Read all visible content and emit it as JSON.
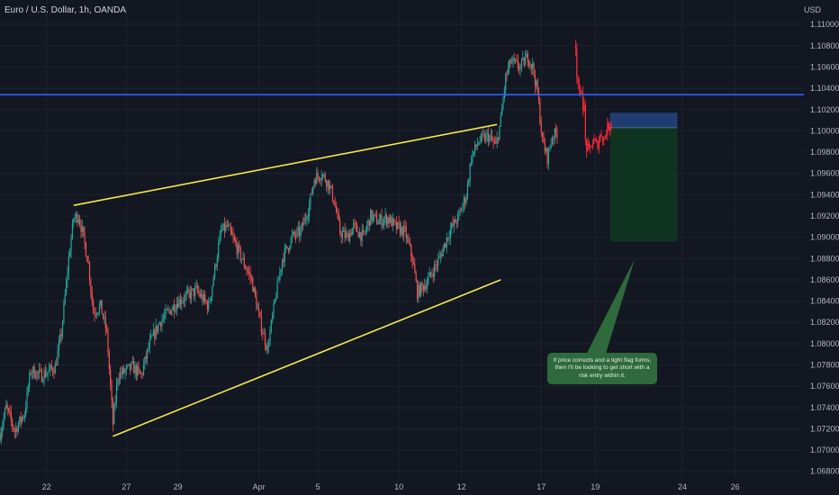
{
  "header": {
    "symbol_title": "Euro / U.S. Dollar, 1h, OANDA"
  },
  "axis": {
    "currency": "USD"
  },
  "colors": {
    "background": "#131722",
    "grid": "#1e222d",
    "up": "#26a69a",
    "down": "#ef5350",
    "highlight": "#ff2b3a",
    "trendline": "#f5e84c",
    "horizontal_line": "#2962ff",
    "risk_zone": "#1f3d73",
    "reward_zone": "#0f3321",
    "annotation_bg": "#2e6a3c"
  },
  "annotation": {
    "text": "If price corrects and a tight flag forms, then I'll be looking to get short with a risk entry within it."
  },
  "chart_data": {
    "type": "candlestick",
    "y_ticks": [
      "1.11000",
      "1.10800",
      "1.10600",
      "1.10400",
      "1.10200",
      "1.10000",
      "1.09800",
      "1.09600",
      "1.09400",
      "1.09200",
      "1.09000",
      "1.08800",
      "1.08600",
      "1.08400",
      "1.08200",
      "1.08000",
      "1.07800",
      "1.07600",
      "1.07400",
      "1.07200",
      "1.07000",
      "1.06800"
    ],
    "ylim": [
      1.0673,
      1.1123
    ],
    "x_ticks": [
      {
        "label": "22",
        "bar": 38
      },
      {
        "label": "27",
        "bar": 103
      },
      {
        "label": "29",
        "bar": 145
      },
      {
        "label": "Apr",
        "bar": 211
      },
      {
        "label": "5",
        "bar": 259
      },
      {
        "label": "10",
        "bar": 325
      },
      {
        "label": "12",
        "bar": 376
      },
      {
        "label": "17",
        "bar": 441
      },
      {
        "label": "19",
        "bar": 485
      },
      {
        "label": "24",
        "bar": 556
      },
      {
        "label": "26",
        "bar": 599
      }
    ],
    "xlim": [
      0,
      655
    ],
    "price_path": [
      [
        0,
        1.0715
      ],
      [
        5,
        1.074
      ],
      [
        12,
        1.0718
      ],
      [
        20,
        1.0735
      ],
      [
        25,
        1.0775
      ],
      [
        34,
        1.077
      ],
      [
        45,
        1.0778
      ],
      [
        50,
        1.081
      ],
      [
        56,
        1.088
      ],
      [
        60,
        1.0918
      ],
      [
        64,
        1.092
      ],
      [
        68,
        1.09
      ],
      [
        72,
        1.0875
      ],
      [
        76,
        1.083
      ],
      [
        82,
        1.0835
      ],
      [
        87,
        1.081
      ],
      [
        92,
        1.0725
      ],
      [
        96,
        1.077
      ],
      [
        108,
        1.0778
      ],
      [
        115,
        1.077
      ],
      [
        122,
        1.08
      ],
      [
        130,
        1.082
      ],
      [
        145,
        1.084
      ],
      [
        160,
        1.085
      ],
      [
        170,
        1.0835
      ],
      [
        180,
        1.0905
      ],
      [
        185,
        1.091
      ],
      [
        195,
        1.0885
      ],
      [
        205,
        1.086
      ],
      [
        212,
        1.082
      ],
      [
        218,
        1.0795
      ],
      [
        224,
        1.084
      ],
      [
        230,
        1.088
      ],
      [
        238,
        1.09
      ],
      [
        245,
        1.0905
      ],
      [
        252,
        1.093
      ],
      [
        256,
        1.0955
      ],
      [
        262,
        1.096
      ],
      [
        268,
        1.095
      ],
      [
        272,
        1.0935
      ],
      [
        277,
        1.0905
      ],
      [
        283,
        1.09
      ],
      [
        288,
        1.091
      ],
      [
        296,
        1.09
      ],
      [
        302,
        1.092
      ],
      [
        308,
        1.0915
      ],
      [
        316,
        1.0918
      ],
      [
        322,
        1.091
      ],
      [
        330,
        1.0905
      ],
      [
        336,
        1.088
      ],
      [
        340,
        1.0848
      ],
      [
        348,
        1.0858
      ],
      [
        358,
        1.088
      ],
      [
        366,
        1.0905
      ],
      [
        374,
        1.092
      ],
      [
        380,
        1.094
      ],
      [
        384,
        1.0975
      ],
      [
        390,
        1.099
      ],
      [
        398,
        1.0995
      ],
      [
        404,
        1.0985
      ],
      [
        408,
        1.101
      ],
      [
        412,
        1.105
      ],
      [
        416,
        1.1065
      ],
      [
        424,
        1.106
      ],
      [
        430,
        1.107
      ],
      [
        434,
        1.106
      ],
      [
        438,
        1.1035
      ],
      [
        442,
        1.099
      ],
      [
        446,
        1.0975
      ],
      [
        450,
        1.0995
      ],
      [
        454,
        1.0998
      ]
    ],
    "highlight_path": [
      [
        469,
        1.108
      ],
      [
        470,
        1.1055
      ],
      [
        471,
        1.1045
      ],
      [
        472,
        1.1035
      ],
      [
        473,
        1.103
      ],
      [
        474,
        1.104
      ],
      [
        475,
        1.1025
      ],
      [
        476,
        1.102
      ],
      [
        477,
        1.099
      ],
      [
        478,
        1.0985
      ],
      [
        480,
        1.098
      ],
      [
        482,
        1.0988
      ],
      [
        484,
        1.099
      ],
      [
        486,
        1.0986
      ],
      [
        488,
        1.0992
      ],
      [
        490,
        1.0998
      ],
      [
        492,
        1.0992
      ],
      [
        494,
        1.1
      ],
      [
        496,
        1.1005
      ],
      [
        498,
        1.101
      ]
    ],
    "horizontal_line": {
      "price": 1.1034
    },
    "trendlines": [
      {
        "from": [
          60,
          1.093
        ],
        "to": [
          405,
          1.1006
        ]
      },
      {
        "from": [
          92,
          1.0713
        ],
        "to": [
          408,
          1.086
        ]
      }
    ],
    "position": {
      "x_range": [
        497,
        552
      ],
      "stop": 1.1017,
      "entry": 1.1003,
      "target": 1.0896
    }
  }
}
